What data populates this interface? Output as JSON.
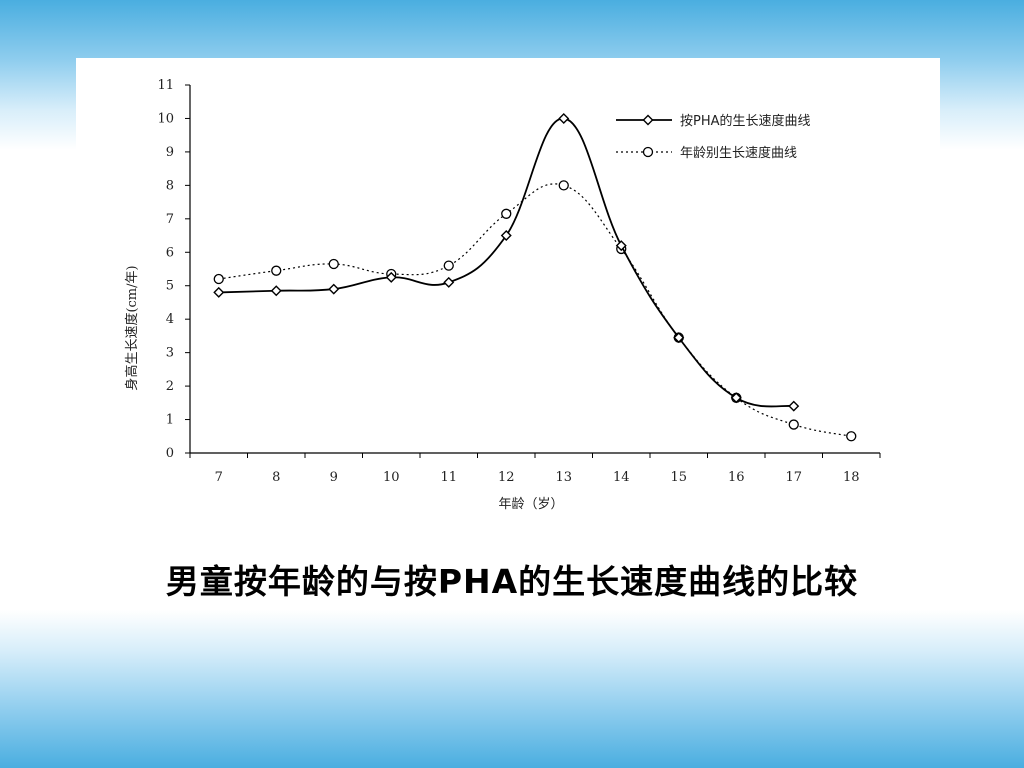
{
  "slide": {
    "caption": "男童按年龄的与按PHA的生长速度曲线的比较"
  },
  "chart_data": {
    "type": "line",
    "xlabel": "年龄（岁）",
    "ylabel": "身高生长速度(cm/年)",
    "xlim": [
      6.5,
      18.5
    ],
    "ylim": [
      0,
      11
    ],
    "x_ticks": [
      7,
      8,
      9,
      10,
      11,
      12,
      13,
      14,
      15,
      16,
      17,
      18
    ],
    "y_ticks": [
      0,
      1,
      2,
      3,
      4,
      5,
      6,
      7,
      8,
      9,
      10,
      11
    ],
    "grid": false,
    "legend_position": "top-right",
    "series": [
      {
        "name": "按PHA的生长速度曲线",
        "style": "solid",
        "marker": "diamond",
        "color": "#000000",
        "x": [
          7,
          8,
          9,
          10,
          11,
          12,
          13,
          14,
          15,
          16,
          17
        ],
        "y": [
          4.8,
          4.85,
          4.9,
          5.25,
          5.1,
          6.5,
          10.0,
          6.2,
          3.45,
          1.65,
          1.4
        ]
      },
      {
        "name": "年龄别生长速度曲线",
        "style": "dotted",
        "marker": "circle",
        "color": "#000000",
        "x": [
          7,
          8,
          9,
          10,
          11,
          12,
          13,
          14,
          15,
          16,
          17,
          18
        ],
        "y": [
          5.2,
          5.45,
          5.65,
          5.35,
          5.6,
          7.15,
          8.0,
          6.1,
          3.45,
          1.65,
          0.85,
          0.5
        ]
      }
    ]
  }
}
